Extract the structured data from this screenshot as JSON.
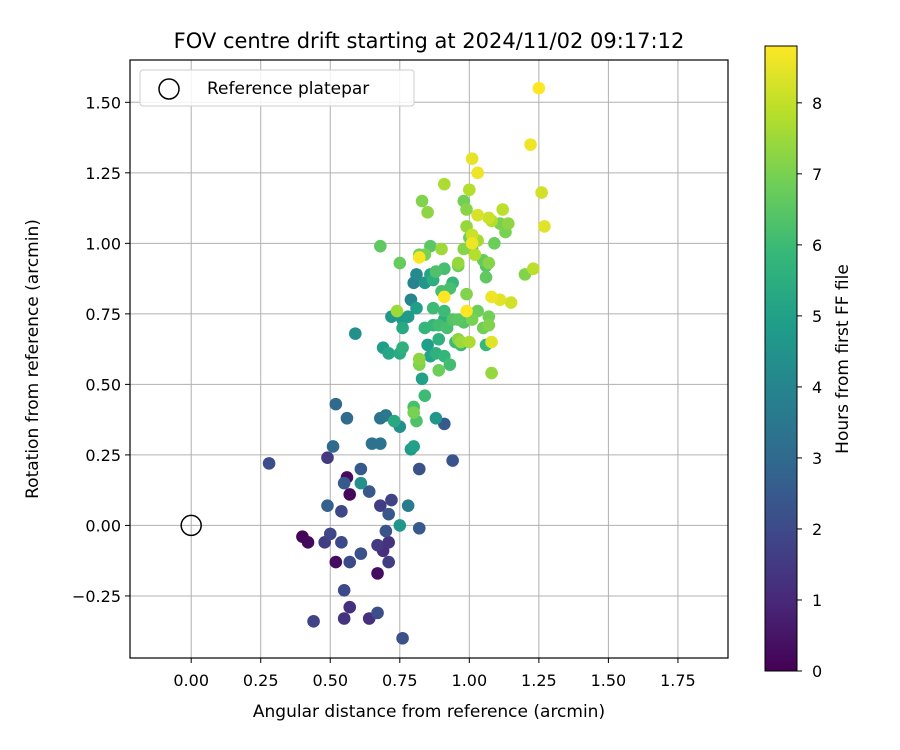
{
  "chart_data": {
    "type": "scatter",
    "title": "FOV centre drift starting at 2024/11/02 09:17:12",
    "xlabel": "Angular distance from reference (arcmin)",
    "ylabel": "Rotation from reference (arcmin)",
    "xlim": [
      -0.22,
      1.93
    ],
    "ylim": [
      -0.47,
      1.65
    ],
    "xticks": [
      "0.00",
      "0.25",
      "0.50",
      "0.75",
      "1.00",
      "1.25",
      "1.50",
      "1.75"
    ],
    "xtick_values": [
      0,
      0.25,
      0.5,
      0.75,
      1.0,
      1.25,
      1.5,
      1.75
    ],
    "yticks": [
      "−0.25",
      "0.00",
      "0.25",
      "0.50",
      "0.75",
      "1.00",
      "1.25",
      "1.50"
    ],
    "ytick_values": [
      -0.25,
      0,
      0.25,
      0.5,
      0.75,
      1.0,
      1.25,
      1.5
    ],
    "grid": true,
    "legend": {
      "label": "Reference platepar",
      "placement": "top-left",
      "marker": "open-circle"
    },
    "reference_point": {
      "x": 0.0,
      "y": 0.0
    },
    "colorbar": {
      "label": "Hours from first FF file",
      "colormap": "viridis",
      "range": [
        0,
        8.8
      ],
      "ticks": [
        "0",
        "1",
        "2",
        "3",
        "4",
        "5",
        "6",
        "7",
        "8"
      ],
      "tick_values": [
        0,
        1,
        2,
        3,
        4,
        5,
        6,
        7,
        8
      ]
    },
    "series": [
      {
        "points": [
          [
            0.4,
            -0.04,
            0.1
          ],
          [
            0.42,
            -0.06,
            0.2
          ],
          [
            0.52,
            -0.13,
            0.3
          ],
          [
            0.57,
            0.11,
            0.2
          ],
          [
            0.56,
            0.17,
            0.3
          ],
          [
            0.67,
            -0.17,
            0.3
          ],
          [
            0.55,
            -0.33,
            1.3
          ],
          [
            0.57,
            -0.29,
            1.2
          ],
          [
            0.64,
            -0.33,
            1.2
          ],
          [
            0.44,
            -0.34,
            1.8
          ],
          [
            0.48,
            -0.06,
            1.6
          ],
          [
            0.5,
            -0.03,
            1.9
          ],
          [
            0.54,
            0.05,
            1.9
          ],
          [
            0.49,
            0.24,
            1.5
          ],
          [
            0.67,
            -0.07,
            1.5
          ],
          [
            0.69,
            -0.09,
            1.2
          ],
          [
            0.71,
            -0.06,
            1.3
          ],
          [
            0.71,
            -0.13,
            1.6
          ],
          [
            0.68,
            0.07,
            1.6
          ],
          [
            0.72,
            0.09,
            1.8
          ],
          [
            0.54,
            -0.06,
            2.0
          ],
          [
            0.57,
            -0.13,
            2.0
          ],
          [
            0.55,
            -0.23,
            2.0
          ],
          [
            0.61,
            -0.1,
            2.2
          ],
          [
            0.67,
            -0.31,
            2.1
          ],
          [
            0.76,
            -0.4,
            2.2
          ],
          [
            0.7,
            -0.02,
            2.3
          ],
          [
            0.71,
            0.04,
            2.4
          ],
          [
            0.64,
            0.12,
            2.4
          ],
          [
            0.55,
            0.15,
            2.5
          ],
          [
            0.61,
            0.2,
            2.5
          ],
          [
            0.49,
            0.07,
            2.7
          ],
          [
            0.82,
            -0.01,
            2.5
          ],
          [
            0.94,
            0.23,
            2.3
          ],
          [
            0.91,
            0.36,
            2.5
          ],
          [
            0.82,
            0.2,
            2.2
          ],
          [
            0.28,
            0.22,
            2.1
          ],
          [
            0.51,
            0.28,
            3.0
          ],
          [
            0.52,
            0.43,
            3.0
          ],
          [
            0.56,
            0.38,
            3.1
          ],
          [
            0.65,
            0.29,
            3.3
          ],
          [
            0.68,
            0.29,
            3.4
          ],
          [
            0.68,
            0.38,
            3.3
          ],
          [
            0.7,
            0.39,
            3.5
          ],
          [
            0.78,
            0.07,
            3.7
          ],
          [
            0.61,
            0.15,
            4.4
          ],
          [
            0.75,
            0.0,
            4.6
          ],
          [
            0.75,
            0.35,
            4.4
          ],
          [
            0.79,
            0.27,
            4.8
          ],
          [
            0.8,
            0.28,
            5.0
          ],
          [
            0.73,
            0.37,
            5.3
          ],
          [
            0.88,
            0.38,
            4.6
          ],
          [
            0.59,
            0.68,
            4.4
          ],
          [
            0.69,
            0.63,
            4.9
          ],
          [
            0.71,
            0.61,
            5.2
          ],
          [
            0.75,
            0.61,
            5.4
          ],
          [
            0.76,
            0.63,
            5.6
          ],
          [
            0.83,
            0.52,
            5.0
          ],
          [
            0.85,
            0.64,
            4.9
          ],
          [
            0.86,
            0.6,
            5.1
          ],
          [
            0.88,
            0.61,
            5.6
          ],
          [
            0.89,
            0.66,
            5.6
          ],
          [
            0.91,
            0.6,
            5.8
          ],
          [
            0.93,
            0.57,
            6.1
          ],
          [
            0.95,
            0.65,
            6.0
          ],
          [
            0.97,
            0.64,
            5.9
          ],
          [
            0.84,
            0.46,
            6.0
          ],
          [
            0.8,
            0.42,
            6.2
          ],
          [
            0.81,
            0.37,
            6.3
          ],
          [
            0.72,
            0.74,
            4.6
          ],
          [
            0.76,
            0.73,
            4.7
          ],
          [
            0.78,
            0.74,
            4.8
          ],
          [
            0.81,
            0.77,
            4.9
          ],
          [
            0.76,
            0.7,
            5.3
          ],
          [
            0.79,
            0.8,
            4.1
          ],
          [
            0.8,
            0.86,
            3.9
          ],
          [
            0.81,
            0.89,
            4.2
          ],
          [
            0.84,
            0.86,
            4.6
          ],
          [
            0.84,
            0.7,
            5.8
          ],
          [
            0.87,
            0.77,
            6.0
          ],
          [
            0.87,
            0.71,
            5.8
          ],
          [
            0.89,
            0.71,
            6.1
          ],
          [
            0.9,
            0.83,
            6.2
          ],
          [
            0.91,
            0.76,
            6.0
          ],
          [
            0.91,
            0.73,
            5.5
          ],
          [
            0.94,
            0.73,
            6.4
          ],
          [
            0.86,
            0.89,
            5.1
          ],
          [
            0.87,
            0.87,
            5.5
          ],
          [
            0.91,
            0.91,
            6.2
          ],
          [
            0.93,
            0.84,
            6.2
          ],
          [
            0.94,
            0.86,
            5.8
          ],
          [
            0.92,
            0.7,
            6.2
          ],
          [
            0.96,
            0.73,
            6.5
          ],
          [
            0.98,
            0.72,
            6.4
          ],
          [
            0.96,
            0.92,
            6.9
          ],
          [
            0.99,
            0.82,
            7.1
          ],
          [
            1.01,
            0.73,
            7.0
          ],
          [
            1.03,
            0.76,
            6.8
          ],
          [
            1.05,
            0.7,
            6.9
          ],
          [
            1.07,
            0.74,
            6.9
          ],
          [
            1.07,
            0.71,
            7.1
          ],
          [
            1.06,
            0.88,
            6.6
          ],
          [
            1.06,
            0.92,
            6.4
          ],
          [
            1.05,
            0.94,
            6.7
          ],
          [
            1.06,
            0.64,
            5.9
          ],
          [
            1.08,
            0.54,
            7.4
          ],
          [
            1.08,
            0.65,
            8.4
          ],
          [
            1.0,
            0.65,
            7.7
          ],
          [
            0.97,
            0.65,
            7.5
          ],
          [
            0.96,
            0.93,
            7.4
          ],
          [
            0.98,
            0.98,
            7.2
          ],
          [
            1.0,
            1.02,
            6.9
          ],
          [
            1.01,
            0.98,
            6.5
          ],
          [
            1.02,
            0.96,
            7.8
          ],
          [
            1.03,
            1.01,
            7.6
          ],
          [
            1.07,
            0.93,
            7.2
          ],
          [
            1.09,
            1.0,
            6.8
          ],
          [
            1.11,
            1.07,
            7.0
          ],
          [
            1.13,
            1.04,
            7.0
          ],
          [
            1.14,
            1.07,
            7.3
          ],
          [
            0.82,
            0.96,
            6.9
          ],
          [
            0.84,
            0.96,
            7.0
          ],
          [
            0.86,
            0.99,
            6.5
          ],
          [
            0.9,
            0.98,
            7.5
          ],
          [
            0.83,
            1.15,
            7.1
          ],
          [
            0.85,
            1.11,
            7.3
          ],
          [
            0.91,
            1.21,
            7.7
          ],
          [
            0.98,
            1.15,
            6.9
          ],
          [
            0.99,
            1.12,
            7.2
          ],
          [
            1.0,
            1.19,
            7.8
          ],
          [
            0.99,
            1.06,
            7.4
          ],
          [
            1.01,
            1.03,
            8.1
          ],
          [
            1.01,
            1.3,
            8.5
          ],
          [
            1.03,
            1.25,
            8.6
          ],
          [
            1.03,
            1.1,
            8.3
          ],
          [
            1.07,
            1.09,
            8.1
          ],
          [
            1.08,
            1.08,
            7.8
          ],
          [
            1.12,
            1.12,
            7.9
          ],
          [
            1.08,
            0.81,
            8.6
          ],
          [
            1.11,
            0.8,
            8.4
          ],
          [
            1.15,
            0.79,
            8.2
          ],
          [
            1.2,
            0.89,
            7.1
          ],
          [
            1.23,
            0.91,
            7.9
          ],
          [
            1.22,
            1.35,
            8.6
          ],
          [
            1.25,
            1.55,
            8.8
          ],
          [
            1.26,
            1.18,
            8.2
          ],
          [
            1.27,
            1.06,
            8.4
          ],
          [
            0.82,
            0.95,
            8.7
          ],
          [
            0.91,
            0.81,
            8.8
          ],
          [
            0.99,
            0.76,
            8.8
          ],
          [
            1.01,
            1.0,
            8.6
          ],
          [
            0.75,
            0.93,
            6.7
          ],
          [
            0.74,
            0.76,
            7.5
          ],
          [
            0.68,
            0.99,
            6.6
          ],
          [
            0.82,
            0.59,
            7.3
          ],
          [
            0.82,
            0.57,
            7.1
          ],
          [
            0.96,
            0.66,
            7.2
          ],
          [
            0.89,
            0.55,
            6.8
          ],
          [
            0.8,
            0.4,
            7.0
          ],
          [
            0.88,
            0.9,
            6.3
          ]
        ]
      }
    ]
  }
}
